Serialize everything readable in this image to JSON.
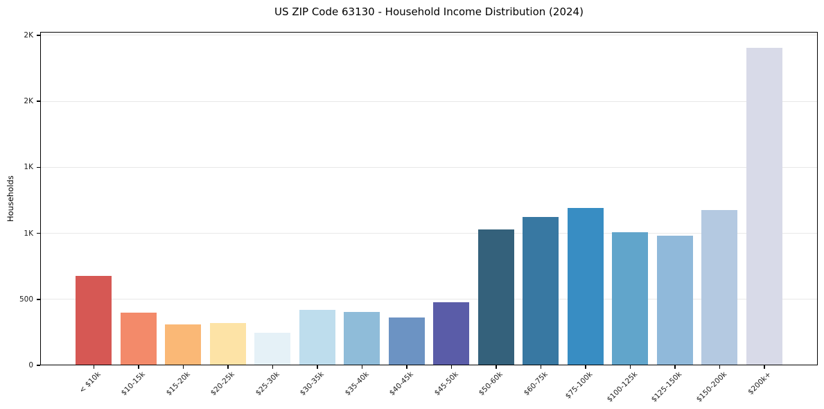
{
  "chart_data": {
    "type": "bar",
    "title": "US ZIP Code 63130 - Household Income Distribution (2024)",
    "xlabel": "",
    "ylabel": "Households",
    "categories": [
      "< $10k",
      "$10-15k",
      "$15-20k",
      "$20-25k",
      "$25-30k",
      "$30-35k",
      "$35-40k",
      "$40-45k",
      "$45-50k",
      "$50-60k",
      "$60-75k",
      "$75-100k",
      "$100-125k",
      "$125-150k",
      "$150-200k",
      "$200k+"
    ],
    "values": [
      675,
      400,
      310,
      320,
      245,
      420,
      405,
      360,
      480,
      1030,
      1125,
      1190,
      1010,
      980,
      1175,
      2405
    ],
    "bar_colors": [
      "#d65854",
      "#f38a6a",
      "#fab876",
      "#fde3a6",
      "#e5f1f7",
      "#bedded",
      "#8fbcd9",
      "#6c93c3",
      "#5a5ca8",
      "#34617b",
      "#3878a2",
      "#388dc3",
      "#61a5cb",
      "#90b9da",
      "#b4c9e1",
      "#d8dae8"
    ],
    "ylim": [
      0,
      2525
    ],
    "yticks": [
      {
        "value": 0,
        "label": "0"
      },
      {
        "value": 500,
        "label": "500"
      },
      {
        "value": 1000,
        "label": "1K"
      },
      {
        "value": 1500,
        "label": "1K"
      },
      {
        "value": 2000,
        "label": "2K"
      },
      {
        "value": 2500,
        "label": "2K"
      }
    ],
    "grid": "horizontal",
    "legend": "none",
    "colors": {
      "grid": "#e8e8e8",
      "spine": "#000000",
      "text": "#1a1a1a",
      "background": "#ffffff"
    }
  }
}
